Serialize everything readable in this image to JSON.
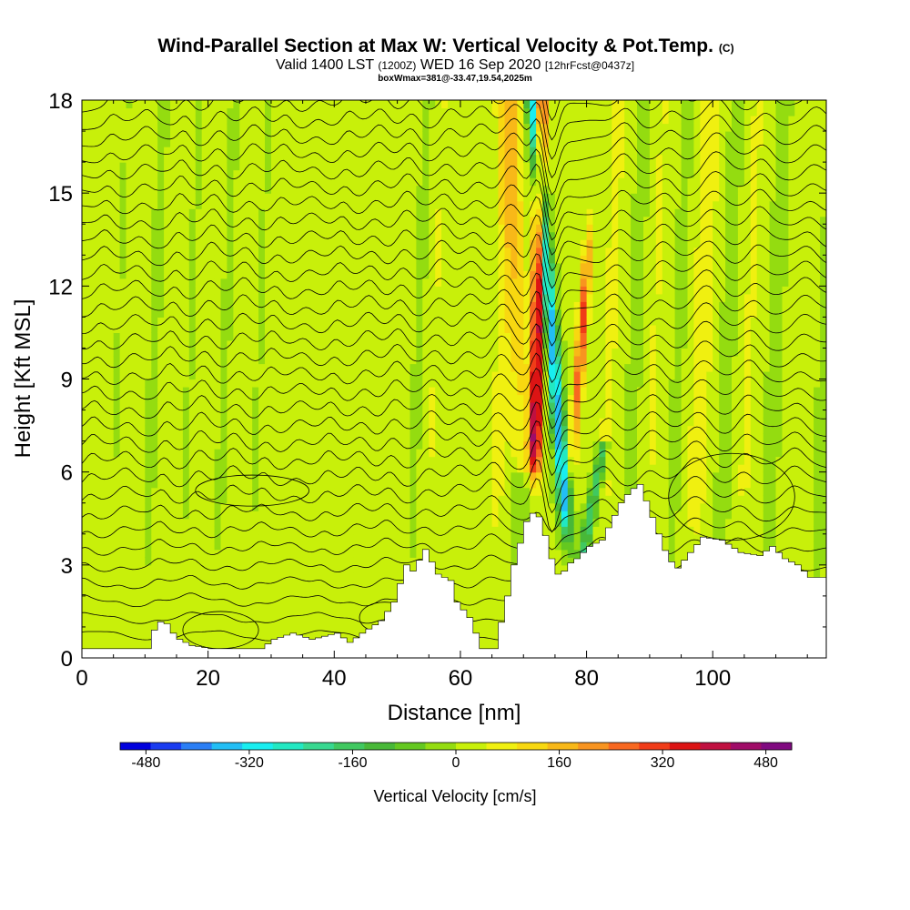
{
  "title": {
    "main": "Wind-Parallel Section at Max W: Vertical Velocity & Pot.Temp.",
    "main_suffix": "(C)",
    "valid_prefix": "Valid 1400 LST",
    "valid_utc": "(1200Z)",
    "valid_date": "WED 16 Sep 2020",
    "forecast": "[12hrFcst@0437z]",
    "box_info": "boxWmax=381@-33.47,19.54,2025m"
  },
  "chart_data": {
    "type": "heatmap",
    "xlabel": "Distance [nm]",
    "ylabel": "Height [Kft MSL]",
    "xlim": [
      0,
      118
    ],
    "ylim": [
      0,
      18
    ],
    "x_ticks": [
      "0",
      "20",
      "40",
      "60",
      "80",
      "100"
    ],
    "x_tick_values": [
      0,
      20,
      40,
      60,
      80,
      100
    ],
    "y_ticks": [
      "0",
      "3",
      "6",
      "9",
      "12",
      "15",
      "18"
    ],
    "y_tick_values": [
      0,
      3,
      6,
      9,
      12,
      15,
      18
    ],
    "grid": false,
    "colorbar": {
      "label": "Vertical Velocity [cm/s]",
      "range": [
        -520,
        520
      ],
      "tick_labels": [
        "-480",
        "-320",
        "-160",
        "0",
        "160",
        "320",
        "480"
      ],
      "tick_values": [
        -480,
        -320,
        -160,
        0,
        160,
        320,
        480
      ],
      "colors": [
        "#0000dd",
        "#1a3cf0",
        "#2a7ef5",
        "#22bef5",
        "#18eef0",
        "#22e8c2",
        "#38d890",
        "#40c860",
        "#48b838",
        "#64c820",
        "#94dc10",
        "#c8f00a",
        "#f0f010",
        "#f8d810",
        "#f8b818",
        "#f89420",
        "#f86820",
        "#f03c18",
        "#dc1414",
        "#c01040",
        "#a00c68",
        "#800a80"
      ]
    },
    "terrain": [
      [
        0,
        0.3
      ],
      [
        10,
        0.3
      ],
      [
        11,
        0.9
      ],
      [
        12.5,
        1.3
      ],
      [
        13.5,
        0.9
      ],
      [
        15,
        0.6
      ],
      [
        17,
        0.4
      ],
      [
        20,
        0.3
      ],
      [
        28,
        0.3
      ],
      [
        30,
        0.6
      ],
      [
        33,
        0.8
      ],
      [
        36,
        0.6
      ],
      [
        40,
        0.8
      ],
      [
        42,
        0.5
      ],
      [
        44,
        0.8
      ],
      [
        47,
        1.2
      ],
      [
        49,
        1.8
      ],
      [
        51,
        3.0
      ],
      [
        52,
        2.8
      ],
      [
        54,
        3.5
      ],
      [
        56,
        2.7
      ],
      [
        58,
        2.5
      ],
      [
        59,
        1.8
      ],
      [
        61,
        1.3
      ],
      [
        62,
        0.8
      ],
      [
        63,
        0.3
      ],
      [
        65,
        0.3
      ],
      [
        67,
        2.0
      ],
      [
        68,
        3.0
      ],
      [
        70,
        4.4
      ],
      [
        71.5,
        4.8
      ],
      [
        72.5,
        4.3
      ],
      [
        73.5,
        3.6
      ],
      [
        74.5,
        2.8
      ],
      [
        75.5,
        2.6
      ],
      [
        76.5,
        3.0
      ],
      [
        78,
        3.2
      ],
      [
        80,
        3.6
      ],
      [
        82,
        3.8
      ],
      [
        83.5,
        4.4
      ],
      [
        85,
        5.0
      ],
      [
        86.5,
        5.4
      ],
      [
        88,
        5.6
      ],
      [
        89.5,
        4.8
      ],
      [
        91,
        4.0
      ],
      [
        92.5,
        3.2
      ],
      [
        94,
        2.9
      ],
      [
        96,
        3.4
      ],
      [
        98,
        3.9
      ],
      [
        101,
        3.8
      ],
      [
        104,
        3.4
      ],
      [
        107,
        3.3
      ],
      [
        109,
        3.6
      ],
      [
        111,
        3.2
      ],
      [
        113,
        3.0
      ],
      [
        115,
        2.6
      ],
      [
        118,
        2.6
      ]
    ],
    "updraft_plumes": [
      {
        "x": 1.5,
        "w": 12,
        "amp": 28
      },
      {
        "x": 7,
        "w": 14,
        "amp": 30
      },
      {
        "x": 13,
        "w": 12,
        "amp": 34
      },
      {
        "x": 18.5,
        "w": 14,
        "amp": 40
      },
      {
        "x": 24,
        "w": 14,
        "amp": 36
      },
      {
        "x": 29,
        "w": 12,
        "amp": 30
      },
      {
        "x": 34,
        "w": 14,
        "amp": 26
      },
      {
        "x": 39,
        "w": 12,
        "amp": 30
      },
      {
        "x": 44,
        "w": 14,
        "amp": 34
      },
      {
        "x": 49,
        "w": 14,
        "amp": 40
      },
      {
        "x": 55,
        "w": 16,
        "amp": 44
      },
      {
        "x": 60,
        "w": 16,
        "amp": 38
      },
      {
        "x": 65.5,
        "w": 18,
        "amp": 62
      },
      {
        "x": 83,
        "w": 18,
        "amp": 48
      },
      {
        "x": 90,
        "w": 18,
        "amp": 42
      },
      {
        "x": 97.5,
        "w": 22,
        "amp": 60
      },
      {
        "x": 105,
        "w": 18,
        "amp": 44
      },
      {
        "x": 113,
        "w": 18,
        "amp": 36
      }
    ],
    "max_updraft_cm_s": 381
  }
}
